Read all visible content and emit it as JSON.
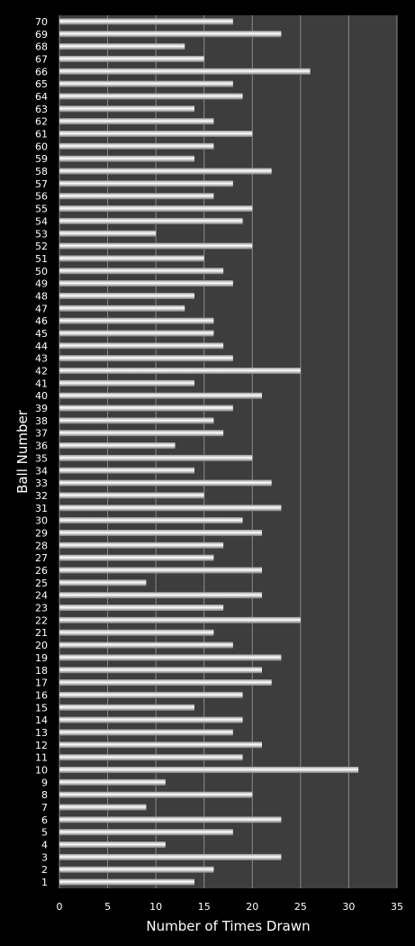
{
  "chart_data": {
    "type": "bar",
    "orientation": "horizontal",
    "xlabel": "Number of Times Drawn",
    "ylabel": "Ball Number",
    "xlim": [
      0,
      35
    ],
    "xticks": [
      0,
      5,
      10,
      15,
      20,
      25,
      30,
      35
    ],
    "grid": true,
    "categories": [
      "1",
      "2",
      "3",
      "4",
      "5",
      "6",
      "7",
      "8",
      "9",
      "10",
      "11",
      "12",
      "13",
      "14",
      "15",
      "16",
      "17",
      "18",
      "19",
      "20",
      "21",
      "22",
      "23",
      "24",
      "25",
      "26",
      "27",
      "28",
      "29",
      "30",
      "31",
      "32",
      "33",
      "34",
      "35",
      "36",
      "37",
      "38",
      "39",
      "40",
      "41",
      "42",
      "43",
      "44",
      "45",
      "46",
      "47",
      "48",
      "49",
      "50",
      "51",
      "52",
      "53",
      "54",
      "55",
      "56",
      "57",
      "58",
      "59",
      "60",
      "61",
      "62",
      "63",
      "64",
      "65",
      "66",
      "67",
      "68",
      "69",
      "70"
    ],
    "values": [
      14,
      16,
      23,
      11,
      18,
      23,
      9,
      20,
      11,
      31,
      19,
      21,
      18,
      19,
      14,
      19,
      22,
      21,
      23,
      18,
      16,
      25,
      17,
      21,
      9,
      21,
      16,
      17,
      21,
      19,
      23,
      15,
      22,
      14,
      20,
      12,
      17,
      16,
      18,
      21,
      14,
      25,
      18,
      17,
      16,
      16,
      13,
      14,
      18,
      17,
      15,
      20,
      10,
      19,
      20,
      16,
      18,
      22,
      14,
      16,
      20,
      16,
      14,
      19,
      18,
      26,
      15,
      13,
      23,
      18
    ],
    "colors": {
      "page_background": "#000000",
      "plot_background": "#3d3d3d",
      "bar": "#ffffff",
      "gridline": "#8a8a8a",
      "text": "#ffffff"
    }
  }
}
